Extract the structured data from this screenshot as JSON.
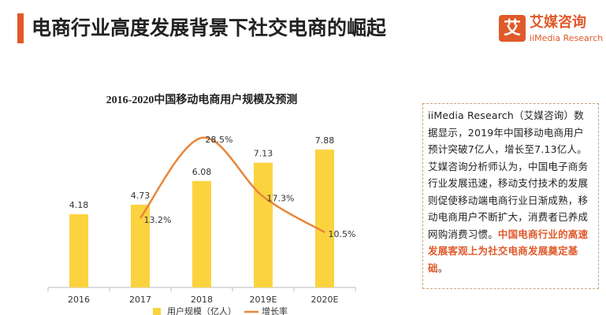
{
  "header": {
    "title": "电商行业高度发展背景下社交电商的崛起",
    "logo_icon": "艾",
    "logo_name": "艾媒咨询",
    "logo_sub": "iiMedia Research"
  },
  "chart_data": {
    "type": "bar",
    "title": "2016-2020中国移动电商用户规模及预测",
    "categories": [
      "2016",
      "2017",
      "2018",
      "2019E",
      "2020E"
    ],
    "series": [
      {
        "name": "用户规模（亿人）",
        "color": "#fbd33f",
        "values": [
          4.18,
          4.73,
          6.08,
          7.13,
          7.88
        ]
      },
      {
        "name": "增长率",
        "type": "line",
        "axis": "y2",
        "color": "#e8863a",
        "values": [
          null,
          13.2,
          28.5,
          17.3,
          10.5
        ],
        "value_labels": [
          null,
          "13.2%",
          "28.5%",
          "17.3%",
          "10.5%"
        ]
      }
    ],
    "ylim": [
      0,
      9
    ],
    "y2lim": [
      0,
      30
    ],
    "grid": false,
    "legend": "bottom"
  },
  "note": {
    "body": "iiMedia Research（艾媒咨询）数据显示，2019年中国移动电商用户预计突破7亿人，增长至7.13亿人。艾媒咨询分析师认为，中国电子商务行业发展迅速，移动支付技术的发展则促使移动端电商行业日渐成熟，移动电商用户不断扩大，消费者已养成网购消费习惯。",
    "highlight": "中国电商行业的高速发展客观上为社交电商发展奠定基础",
    "end": "。"
  }
}
